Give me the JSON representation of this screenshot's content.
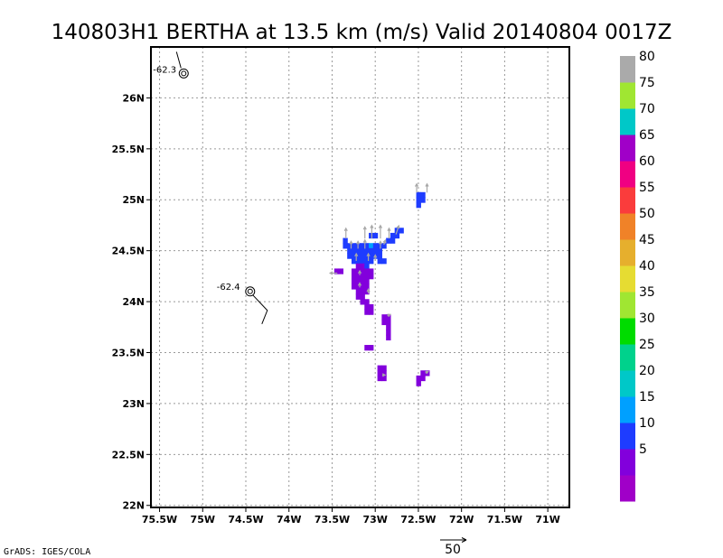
{
  "title": "140803H1 BERTHA at 13.5 km (m/s) Valid 20140804 0017Z",
  "credit": "GrADS: IGES/COLA",
  "reference_vector_label": "50",
  "chart_data": {
    "type": "heatmap",
    "projection": "lat-lon",
    "xlim": [
      -75.6,
      -70.75
    ],
    "ylim": [
      21.98,
      26.5
    ],
    "x_ticks": [
      {
        "value": -75.5,
        "label": "75.5W"
      },
      {
        "value": -75.0,
        "label": "75W"
      },
      {
        "value": -74.5,
        "label": "74.5W"
      },
      {
        "value": -74.0,
        "label": "74W"
      },
      {
        "value": -73.5,
        "label": "73.5W"
      },
      {
        "value": -73.0,
        "label": "73W"
      },
      {
        "value": -72.5,
        "label": "72.5W"
      },
      {
        "value": -72.0,
        "label": "72W"
      },
      {
        "value": -71.5,
        "label": "71.5W"
      },
      {
        "value": -71.0,
        "label": "71W"
      }
    ],
    "y_ticks": [
      {
        "value": 22.0,
        "label": "22N"
      },
      {
        "value": 22.5,
        "label": "22.5N"
      },
      {
        "value": 23.0,
        "label": "23N"
      },
      {
        "value": 23.5,
        "label": "23.5N"
      },
      {
        "value": 24.0,
        "label": "24N"
      },
      {
        "value": 24.5,
        "label": "24.5N"
      },
      {
        "value": 25.0,
        "label": "25N"
      },
      {
        "value": 25.5,
        "label": "25.5N"
      },
      {
        "value": 26.0,
        "label": "26N"
      }
    ],
    "grid": "dotted",
    "colorbar": {
      "placement": "right",
      "colors": [
        "#a000c8",
        "#8200dc",
        "#1e3cff",
        "#00a0ff",
        "#00c8c8",
        "#00d28c",
        "#00dc00",
        "#a0e632",
        "#e6dc32",
        "#e6af2d",
        "#f08228",
        "#fa3c3c",
        "#f00082",
        "#a000c8",
        "#00c8c8",
        "#a0e632",
        "#aaaaaa"
      ],
      "labels": [
        {
          "after_bin": 1,
          "text": "5"
        },
        {
          "after_bin": 2,
          "text": "10"
        },
        {
          "after_bin": 3,
          "text": "15"
        },
        {
          "after_bin": 4,
          "text": "20"
        },
        {
          "after_bin": 5,
          "text": "25"
        },
        {
          "after_bin": 6,
          "text": "30"
        },
        {
          "after_bin": 7,
          "text": "35"
        },
        {
          "after_bin": 8,
          "text": "40"
        },
        {
          "after_bin": 9,
          "text": "45"
        },
        {
          "after_bin": 10,
          "text": "50"
        },
        {
          "after_bin": 11,
          "text": "55"
        },
        {
          "after_bin": 12,
          "text": "60"
        },
        {
          "after_bin": 13,
          "text": "65"
        },
        {
          "after_bin": 14,
          "text": "70"
        },
        {
          "after_bin": 15,
          "text": "75"
        },
        {
          "after_bin": 16,
          "text": "80"
        }
      ]
    },
    "cells": [
      {
        "lon": -72.5,
        "lat": 25.05,
        "bin": 2
      },
      {
        "lon": -72.45,
        "lat": 25.05,
        "bin": 2
      },
      {
        "lon": -72.5,
        "lat": 25.0,
        "bin": 2
      },
      {
        "lon": -72.45,
        "lat": 25.0,
        "bin": 2
      },
      {
        "lon": -72.5,
        "lat": 24.95,
        "bin": 2
      },
      {
        "lon": -72.7,
        "lat": 24.7,
        "bin": 2
      },
      {
        "lon": -72.75,
        "lat": 24.7,
        "bin": 2
      },
      {
        "lon": -72.8,
        "lat": 24.65,
        "bin": 2
      },
      {
        "lon": -72.75,
        "lat": 24.65,
        "bin": 2
      },
      {
        "lon": -72.85,
        "lat": 24.6,
        "bin": 2
      },
      {
        "lon": -72.8,
        "lat": 24.6,
        "bin": 2
      },
      {
        "lon": -73.05,
        "lat": 24.65,
        "bin": 2
      },
      {
        "lon": -73.0,
        "lat": 24.65,
        "bin": 2
      },
      {
        "lon": -73.35,
        "lat": 24.6,
        "bin": 2
      },
      {
        "lon": -73.35,
        "lat": 24.55,
        "bin": 2
      },
      {
        "lon": -73.3,
        "lat": 24.55,
        "bin": 2
      },
      {
        "lon": -73.25,
        "lat": 24.55,
        "bin": 2
      },
      {
        "lon": -73.2,
        "lat": 24.55,
        "bin": 2
      },
      {
        "lon": -73.15,
        "lat": 24.55,
        "bin": 2
      },
      {
        "lon": -73.1,
        "lat": 24.55,
        "bin": 2
      },
      {
        "lon": -73.05,
        "lat": 24.55,
        "bin": 3
      },
      {
        "lon": -73.0,
        "lat": 24.55,
        "bin": 2
      },
      {
        "lon": -72.95,
        "lat": 24.55,
        "bin": 2
      },
      {
        "lon": -72.9,
        "lat": 24.55,
        "bin": 2
      },
      {
        "lon": -73.3,
        "lat": 24.5,
        "bin": 2
      },
      {
        "lon": -73.25,
        "lat": 24.5,
        "bin": 2
      },
      {
        "lon": -73.2,
        "lat": 24.5,
        "bin": 2
      },
      {
        "lon": -73.15,
        "lat": 24.5,
        "bin": 2
      },
      {
        "lon": -73.1,
        "lat": 24.5,
        "bin": 2
      },
      {
        "lon": -73.05,
        "lat": 24.5,
        "bin": 2
      },
      {
        "lon": -73.0,
        "lat": 24.5,
        "bin": 2
      },
      {
        "lon": -72.95,
        "lat": 24.5,
        "bin": 2
      },
      {
        "lon": -73.3,
        "lat": 24.45,
        "bin": 2
      },
      {
        "lon": -73.25,
        "lat": 24.45,
        "bin": 2
      },
      {
        "lon": -73.2,
        "lat": 24.45,
        "bin": 2
      },
      {
        "lon": -73.15,
        "lat": 24.45,
        "bin": 2
      },
      {
        "lon": -73.1,
        "lat": 24.45,
        "bin": 2
      },
      {
        "lon": -73.05,
        "lat": 24.45,
        "bin": 2
      },
      {
        "lon": -73.0,
        "lat": 24.45,
        "bin": 2
      },
      {
        "lon": -72.95,
        "lat": 24.45,
        "bin": 2
      },
      {
        "lon": -73.25,
        "lat": 24.4,
        "bin": 2
      },
      {
        "lon": -73.2,
        "lat": 24.4,
        "bin": 2
      },
      {
        "lon": -73.15,
        "lat": 24.4,
        "bin": 2
      },
      {
        "lon": -73.1,
        "lat": 24.4,
        "bin": 2
      },
      {
        "lon": -73.05,
        "lat": 24.4,
        "bin": 2
      },
      {
        "lon": -72.95,
        "lat": 24.4,
        "bin": 2
      },
      {
        "lon": -72.9,
        "lat": 24.4,
        "bin": 2
      },
      {
        "lon": -73.2,
        "lat": 24.35,
        "bin": 1
      },
      {
        "lon": -73.15,
        "lat": 24.35,
        "bin": 1
      },
      {
        "lon": -73.1,
        "lat": 24.35,
        "bin": 2
      },
      {
        "lon": -73.45,
        "lat": 24.3,
        "bin": 1
      },
      {
        "lon": -73.4,
        "lat": 24.3,
        "bin": 1
      },
      {
        "lon": -73.25,
        "lat": 24.3,
        "bin": 1
      },
      {
        "lon": -73.2,
        "lat": 24.3,
        "bin": 1
      },
      {
        "lon": -73.15,
        "lat": 24.3,
        "bin": 1
      },
      {
        "lon": -73.1,
        "lat": 24.3,
        "bin": 1
      },
      {
        "lon": -73.05,
        "lat": 24.3,
        "bin": 1
      },
      {
        "lon": -73.25,
        "lat": 24.25,
        "bin": 1
      },
      {
        "lon": -73.2,
        "lat": 24.25,
        "bin": 1
      },
      {
        "lon": -73.15,
        "lat": 24.25,
        "bin": 1
      },
      {
        "lon": -73.1,
        "lat": 24.25,
        "bin": 1
      },
      {
        "lon": -73.05,
        "lat": 24.25,
        "bin": 1
      },
      {
        "lon": -73.25,
        "lat": 24.2,
        "bin": 1
      },
      {
        "lon": -73.2,
        "lat": 24.2,
        "bin": 1
      },
      {
        "lon": -73.15,
        "lat": 24.2,
        "bin": 1
      },
      {
        "lon": -73.1,
        "lat": 24.2,
        "bin": 1
      },
      {
        "lon": -73.25,
        "lat": 24.15,
        "bin": 1
      },
      {
        "lon": -73.2,
        "lat": 24.15,
        "bin": 1
      },
      {
        "lon": -73.15,
        "lat": 24.15,
        "bin": 1
      },
      {
        "lon": -73.1,
        "lat": 24.15,
        "bin": 1
      },
      {
        "lon": -73.2,
        "lat": 24.1,
        "bin": 1
      },
      {
        "lon": -73.15,
        "lat": 24.1,
        "bin": 1
      },
      {
        "lon": -73.1,
        "lat": 24.1,
        "bin": 1
      },
      {
        "lon": -73.2,
        "lat": 24.05,
        "bin": 1
      },
      {
        "lon": -73.15,
        "lat": 24.05,
        "bin": 1
      },
      {
        "lon": -73.15,
        "lat": 24.0,
        "bin": 1
      },
      {
        "lon": -73.1,
        "lat": 24.0,
        "bin": 1
      },
      {
        "lon": -73.1,
        "lat": 23.95,
        "bin": 1
      },
      {
        "lon": -73.05,
        "lat": 23.95,
        "bin": 1
      },
      {
        "lon": -73.1,
        "lat": 23.9,
        "bin": 1
      },
      {
        "lon": -73.05,
        "lat": 23.9,
        "bin": 1
      },
      {
        "lon": -72.9,
        "lat": 23.85,
        "bin": 1
      },
      {
        "lon": -72.85,
        "lat": 23.85,
        "bin": 1
      },
      {
        "lon": -72.9,
        "lat": 23.8,
        "bin": 1
      },
      {
        "lon": -72.85,
        "lat": 23.8,
        "bin": 1
      },
      {
        "lon": -72.85,
        "lat": 23.75,
        "bin": 1
      },
      {
        "lon": -72.85,
        "lat": 23.7,
        "bin": 1
      },
      {
        "lon": -72.85,
        "lat": 23.65,
        "bin": 1
      },
      {
        "lon": -73.1,
        "lat": 23.55,
        "bin": 1
      },
      {
        "lon": -73.05,
        "lat": 23.55,
        "bin": 1
      },
      {
        "lon": -72.95,
        "lat": 23.35,
        "bin": 1
      },
      {
        "lon": -72.9,
        "lat": 23.35,
        "bin": 1
      },
      {
        "lon": -72.95,
        "lat": 23.3,
        "bin": 1
      },
      {
        "lon": -72.9,
        "lat": 23.3,
        "bin": 1
      },
      {
        "lon": -72.95,
        "lat": 23.25,
        "bin": 1
      },
      {
        "lon": -72.9,
        "lat": 23.25,
        "bin": 1
      },
      {
        "lon": -72.45,
        "lat": 23.3,
        "bin": 1
      },
      {
        "lon": -72.4,
        "lat": 23.3,
        "bin": 1
      },
      {
        "lon": -72.5,
        "lat": 23.25,
        "bin": 1
      },
      {
        "lon": -72.45,
        "lat": 23.25,
        "bin": 1
      },
      {
        "lon": -72.5,
        "lat": 23.2,
        "bin": 1
      }
    ],
    "vectors": [
      {
        "lon": -72.52,
        "lat": 25.07,
        "u": 0,
        "v": 6
      },
      {
        "lon": -72.4,
        "lat": 25.07,
        "u": 0,
        "v": 6
      },
      {
        "lon": -73.34,
        "lat": 24.62,
        "u": 0,
        "v": 7
      },
      {
        "lon": -73.12,
        "lat": 24.62,
        "u": 0,
        "v": 8
      },
      {
        "lon": -73.04,
        "lat": 24.62,
        "u": 0,
        "v": 9
      },
      {
        "lon": -72.94,
        "lat": 24.62,
        "u": 0,
        "v": 9
      },
      {
        "lon": -72.84,
        "lat": 24.62,
        "u": 0,
        "v": 7
      },
      {
        "lon": -72.76,
        "lat": 24.66,
        "u": 2,
        "v": 6
      },
      {
        "lon": -73.28,
        "lat": 24.52,
        "u": 0,
        "v": 5
      },
      {
        "lon": -73.2,
        "lat": 24.52,
        "u": 0,
        "v": 5
      },
      {
        "lon": -73.12,
        "lat": 24.52,
        "u": 0,
        "v": 6
      },
      {
        "lon": -72.94,
        "lat": 24.52,
        "u": 0,
        "v": 5
      },
      {
        "lon": -73.22,
        "lat": 24.4,
        "u": 0,
        "v": 5
      },
      {
        "lon": -73.08,
        "lat": 24.4,
        "u": 0,
        "v": 5
      },
      {
        "lon": -73.0,
        "lat": 24.4,
        "u": 0,
        "v": 4
      },
      {
        "lon": -72.9,
        "lat": 24.56,
        "u": 1,
        "v": 3
      },
      {
        "lon": -73.44,
        "lat": 24.28,
        "u": -5,
        "v": 0
      },
      {
        "lon": -73.18,
        "lat": 24.26,
        "u": 0,
        "v": 3
      },
      {
        "lon": -73.18,
        "lat": 24.14,
        "u": 0,
        "v": 3
      },
      {
        "lon": -73.08,
        "lat": 24.08,
        "u": 0,
        "v": 3
      },
      {
        "lon": -72.86,
        "lat": 23.86,
        "u": 2,
        "v": 1
      },
      {
        "lon": -72.92,
        "lat": 23.28,
        "u": 2,
        "v": 0
      },
      {
        "lon": -72.42,
        "lat": 23.3,
        "u": 2,
        "v": 1
      }
    ],
    "drop_markers": [
      {
        "lon": -75.22,
        "lat": 26.24,
        "label": "-62.3"
      },
      {
        "lon": -74.45,
        "lat": 24.1,
        "label": "-62.4"
      }
    ]
  }
}
